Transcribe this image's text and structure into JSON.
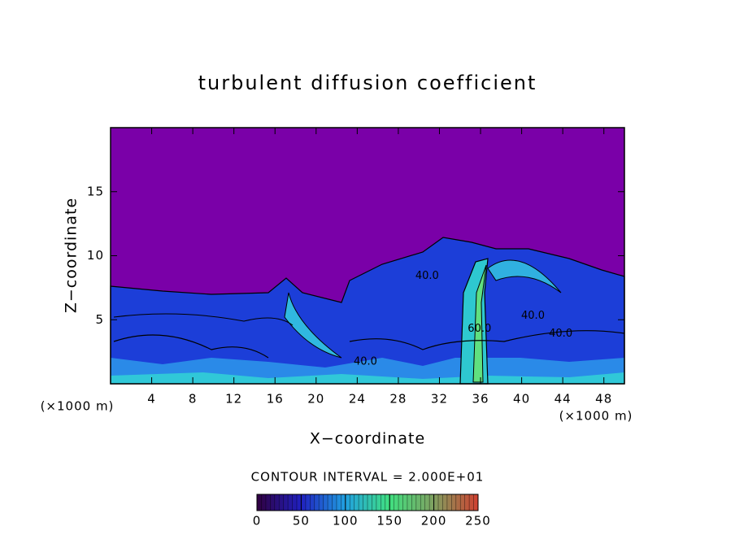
{
  "chart_data": {
    "type": "contour",
    "title": "turbulent diffusion coefficient",
    "x_label": "X−coordinate",
    "y_label": "Z−coordinate",
    "axis_unit": "(×1000 m)",
    "xlim": [
      0,
      50
    ],
    "xticks": [
      4,
      8,
      12,
      16,
      20,
      24,
      28,
      32,
      36,
      40,
      44,
      48
    ],
    "ylim": [
      0,
      20
    ],
    "yticks": [
      5,
      10,
      15
    ],
    "contour_interval_text": "CONTOUR INTERVAL = 2.000E+01",
    "contour_labels": [
      {
        "text": "40.0",
        "x": 30.8,
        "y": 8.4
      },
      {
        "text": "40.0",
        "x": 41.1,
        "y": 5.3
      },
      {
        "text": "40.0",
        "x": 43.8,
        "y": 3.9
      },
      {
        "text": "60.0",
        "x": 35.9,
        "y": 4.3
      },
      {
        "text": "40.0",
        "x": 24.8,
        "y": 1.7
      }
    ],
    "colorbar": {
      "lim": [
        0,
        250
      ],
      "ticks": [
        0,
        50,
        100,
        150,
        200,
        250
      ],
      "colors": [
        "#300040",
        "#2020c0",
        "#20a0e0",
        "#40e080",
        "#80a060",
        "#d04030"
      ]
    }
  }
}
